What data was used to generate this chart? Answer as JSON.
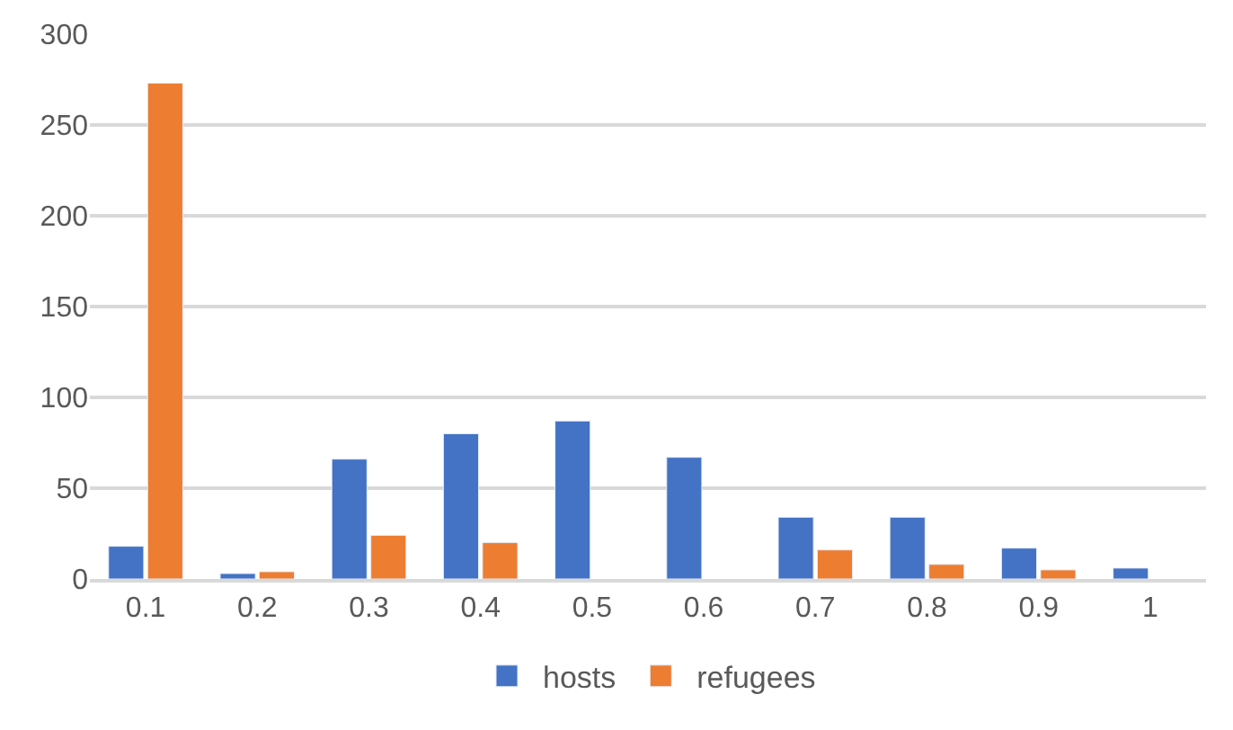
{
  "chart_data": {
    "type": "bar",
    "categories": [
      "0.1",
      "0.2",
      "0.3",
      "0.4",
      "0.5",
      "0.6",
      "0.7",
      "0.8",
      "0.9",
      "1"
    ],
    "series": [
      {
        "name": "hosts",
        "color": "#4472c4",
        "values": [
          18,
          3,
          66,
          80,
          87,
          67,
          34,
          34,
          17,
          6
        ]
      },
      {
        "name": "refugees",
        "color": "#ed7d31",
        "values": [
          273,
          4,
          24,
          20,
          null,
          null,
          16,
          8,
          5,
          null
        ]
      }
    ],
    "ylim": [
      0,
      300
    ],
    "yticks": [
      0,
      50,
      100,
      150,
      200,
      250,
      300
    ],
    "grid": "y",
    "legend": "bottom"
  }
}
